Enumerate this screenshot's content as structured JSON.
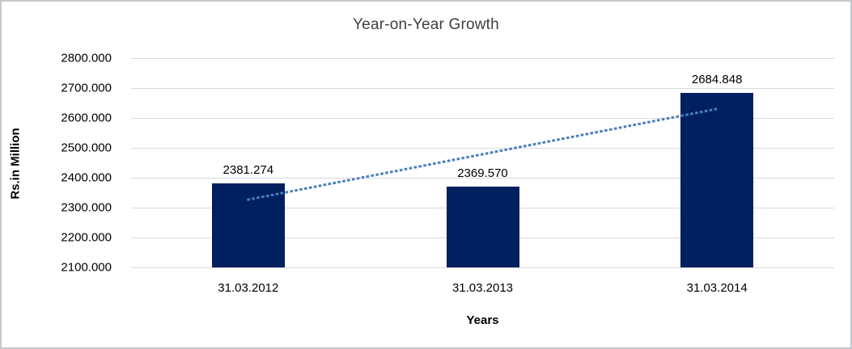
{
  "chart_data": {
    "type": "bar",
    "title": "Year-on-Year Growth",
    "xlabel": "Years",
    "ylabel": "Rs.in Million",
    "categories": [
      "31.03.2012",
      "31.03.2013",
      "31.03.2014"
    ],
    "values": [
      2381.274,
      2369.57,
      2684.848
    ],
    "data_labels": [
      "2381.274",
      "2369.570",
      "2684.848"
    ],
    "ylim": [
      2100,
      2800
    ],
    "ytick_step": 100,
    "ytick_labels": [
      "2100.000",
      "2200.000",
      "2300.000",
      "2400.000",
      "2500.000",
      "2600.000",
      "2700.000",
      "2800.000"
    ],
    "grid": true,
    "legend": false,
    "trendline": {
      "type": "linear",
      "style": "dotted",
      "endpoint_values": [
        2326.777,
        2630.351
      ]
    },
    "colors": {
      "bar_fill": "#002060",
      "trendline": "#4a7ebb",
      "gridline": "#d9d9d9",
      "title_text": "#3f3f3f",
      "axis_text": "#000000",
      "frame_border": "#c3c8cc",
      "background": "#ffffff"
    }
  }
}
